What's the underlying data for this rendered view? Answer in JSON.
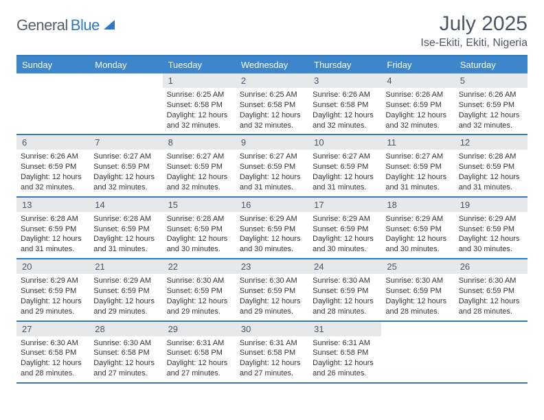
{
  "brand": {
    "left": "General",
    "right": "Blue"
  },
  "title": "July 2025",
  "location": "Ise-Ekiti, Ekiti, Nigeria",
  "colors": {
    "header_bg": "#3e86cc",
    "header_text": "#ffffff",
    "daynum_bg": "#e6e8ea",
    "border": "#2f78c4",
    "title_text": "#4a5568",
    "body_text": "#333333"
  },
  "typography": {
    "title_fontsize": 30,
    "location_fontsize": 16,
    "dow_fontsize": 13,
    "daynum_fontsize": 13,
    "body_fontsize": 11
  },
  "days_of_week": [
    "Sunday",
    "Monday",
    "Tuesday",
    "Wednesday",
    "Thursday",
    "Friday",
    "Saturday"
  ],
  "weeks": [
    [
      {
        "num": "",
        "sr": "",
        "ss": "",
        "dl": ""
      },
      {
        "num": "",
        "sr": "",
        "ss": "",
        "dl": ""
      },
      {
        "num": "1",
        "sr": "6:25 AM",
        "ss": "6:58 PM",
        "dl": "12 hours and 32 minutes."
      },
      {
        "num": "2",
        "sr": "6:25 AM",
        "ss": "6:58 PM",
        "dl": "12 hours and 32 minutes."
      },
      {
        "num": "3",
        "sr": "6:26 AM",
        "ss": "6:58 PM",
        "dl": "12 hours and 32 minutes."
      },
      {
        "num": "4",
        "sr": "6:26 AM",
        "ss": "6:59 PM",
        "dl": "12 hours and 32 minutes."
      },
      {
        "num": "5",
        "sr": "6:26 AM",
        "ss": "6:59 PM",
        "dl": "12 hours and 32 minutes."
      }
    ],
    [
      {
        "num": "6",
        "sr": "6:26 AM",
        "ss": "6:59 PM",
        "dl": "12 hours and 32 minutes."
      },
      {
        "num": "7",
        "sr": "6:27 AM",
        "ss": "6:59 PM",
        "dl": "12 hours and 32 minutes."
      },
      {
        "num": "8",
        "sr": "6:27 AM",
        "ss": "6:59 PM",
        "dl": "12 hours and 32 minutes."
      },
      {
        "num": "9",
        "sr": "6:27 AM",
        "ss": "6:59 PM",
        "dl": "12 hours and 31 minutes."
      },
      {
        "num": "10",
        "sr": "6:27 AM",
        "ss": "6:59 PM",
        "dl": "12 hours and 31 minutes."
      },
      {
        "num": "11",
        "sr": "6:27 AM",
        "ss": "6:59 PM",
        "dl": "12 hours and 31 minutes."
      },
      {
        "num": "12",
        "sr": "6:28 AM",
        "ss": "6:59 PM",
        "dl": "12 hours and 31 minutes."
      }
    ],
    [
      {
        "num": "13",
        "sr": "6:28 AM",
        "ss": "6:59 PM",
        "dl": "12 hours and 31 minutes."
      },
      {
        "num": "14",
        "sr": "6:28 AM",
        "ss": "6:59 PM",
        "dl": "12 hours and 31 minutes."
      },
      {
        "num": "15",
        "sr": "6:28 AM",
        "ss": "6:59 PM",
        "dl": "12 hours and 30 minutes."
      },
      {
        "num": "16",
        "sr": "6:29 AM",
        "ss": "6:59 PM",
        "dl": "12 hours and 30 minutes."
      },
      {
        "num": "17",
        "sr": "6:29 AM",
        "ss": "6:59 PM",
        "dl": "12 hours and 30 minutes."
      },
      {
        "num": "18",
        "sr": "6:29 AM",
        "ss": "6:59 PM",
        "dl": "12 hours and 30 minutes."
      },
      {
        "num": "19",
        "sr": "6:29 AM",
        "ss": "6:59 PM",
        "dl": "12 hours and 30 minutes."
      }
    ],
    [
      {
        "num": "20",
        "sr": "6:29 AM",
        "ss": "6:59 PM",
        "dl": "12 hours and 29 minutes."
      },
      {
        "num": "21",
        "sr": "6:29 AM",
        "ss": "6:59 PM",
        "dl": "12 hours and 29 minutes."
      },
      {
        "num": "22",
        "sr": "6:30 AM",
        "ss": "6:59 PM",
        "dl": "12 hours and 29 minutes."
      },
      {
        "num": "23",
        "sr": "6:30 AM",
        "ss": "6:59 PM",
        "dl": "12 hours and 29 minutes."
      },
      {
        "num": "24",
        "sr": "6:30 AM",
        "ss": "6:59 PM",
        "dl": "12 hours and 28 minutes."
      },
      {
        "num": "25",
        "sr": "6:30 AM",
        "ss": "6:59 PM",
        "dl": "12 hours and 28 minutes."
      },
      {
        "num": "26",
        "sr": "6:30 AM",
        "ss": "6:59 PM",
        "dl": "12 hours and 28 minutes."
      }
    ],
    [
      {
        "num": "27",
        "sr": "6:30 AM",
        "ss": "6:58 PM",
        "dl": "12 hours and 28 minutes."
      },
      {
        "num": "28",
        "sr": "6:30 AM",
        "ss": "6:58 PM",
        "dl": "12 hours and 27 minutes."
      },
      {
        "num": "29",
        "sr": "6:31 AM",
        "ss": "6:58 PM",
        "dl": "12 hours and 27 minutes."
      },
      {
        "num": "30",
        "sr": "6:31 AM",
        "ss": "6:58 PM",
        "dl": "12 hours and 27 minutes."
      },
      {
        "num": "31",
        "sr": "6:31 AM",
        "ss": "6:58 PM",
        "dl": "12 hours and 26 minutes."
      },
      {
        "num": "",
        "sr": "",
        "ss": "",
        "dl": ""
      },
      {
        "num": "",
        "sr": "",
        "ss": "",
        "dl": ""
      }
    ]
  ],
  "labels": {
    "sunrise": "Sunrise:",
    "sunset": "Sunset:",
    "daylight": "Daylight:"
  }
}
